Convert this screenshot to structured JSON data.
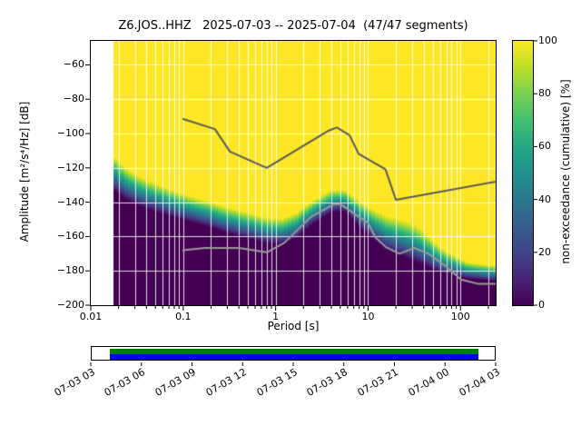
{
  "title": "Z6.JOS..HHZ   2025-07-03 -- 2025-07-04  (47/47 segments)",
  "chart_data": {
    "type": "heatmap",
    "title": "Z6.JOS..HHZ   2025-07-03 -- 2025-07-04  (47/47 segments)",
    "xlabel": "Period [s]",
    "ylabel": "Amplitude [m²/s⁴/Hz] [dB]",
    "colorbar_label": "non-exceedance (cumulative) [%]",
    "x_scale": "log",
    "xlim": [
      0.01,
      240
    ],
    "ylim": [
      -200,
      -46
    ],
    "grid": true,
    "grid_color": "#ffffff",
    "x_ticks": [
      {
        "value": 0.01,
        "label": "0.01"
      },
      {
        "value": 0.1,
        "label": "0.1"
      },
      {
        "value": 1,
        "label": "1"
      },
      {
        "value": 10,
        "label": "10"
      },
      {
        "value": 100,
        "label": "100"
      }
    ],
    "y_ticks": [
      {
        "value": -60,
        "label": "−60"
      },
      {
        "value": -80,
        "label": "−80"
      },
      {
        "value": -100,
        "label": "−100"
      },
      {
        "value": -120,
        "label": "−120"
      },
      {
        "value": -140,
        "label": "−140"
      },
      {
        "value": -160,
        "label": "−160"
      },
      {
        "value": -180,
        "label": "−180"
      },
      {
        "value": -200,
        "label": "−200"
      }
    ],
    "grid_y_values": [
      -60,
      -80,
      -100,
      -120,
      -140,
      -160,
      -180
    ],
    "colorbar_ticks": [
      {
        "value": 0,
        "label": "0"
      },
      {
        "value": 20,
        "label": "20"
      },
      {
        "value": 40,
        "label": "40"
      },
      {
        "value": 60,
        "label": "60"
      },
      {
        "value": 80,
        "label": "80"
      },
      {
        "value": 100,
        "label": "100"
      }
    ],
    "colormap": {
      "name": "viridis",
      "anchors": [
        "#440154",
        "#482475",
        "#414487",
        "#355f8d",
        "#2a788e",
        "#21918c",
        "#22a884",
        "#44bf70",
        "#7ad151",
        "#bddf26",
        "#fde725"
      ]
    },
    "data_period_range": [
      0.0178,
      240
    ],
    "period_step_octaves": 0.125,
    "cumulative_band": {
      "description": "Per period: PSD level at 0% non-exceedance (below = dark) and at 100% (above = yellow), dB",
      "points": [
        [
          0.0178,
          -133,
          -113
        ],
        [
          0.025,
          -139,
          -121
        ],
        [
          0.04,
          -144,
          -127
        ],
        [
          0.07,
          -148,
          -132
        ],
        [
          0.11,
          -151,
          -136
        ],
        [
          0.18,
          -154,
          -139
        ],
        [
          0.3,
          -158,
          -143
        ],
        [
          0.5,
          -161,
          -146
        ],
        [
          0.8,
          -164,
          -149
        ],
        [
          1.2,
          -164.5,
          -149.5
        ],
        [
          1.7,
          -161,
          -146
        ],
        [
          2.5,
          -153,
          -139
        ],
        [
          4.0,
          -146,
          -133
        ],
        [
          5.5,
          -145,
          -132.5
        ],
        [
          7.0,
          -151,
          -137
        ],
        [
          9.0,
          -157,
          -141
        ],
        [
          12,
          -163,
          -145
        ],
        [
          16,
          -168,
          -148
        ],
        [
          22,
          -171,
          -150
        ],
        [
          30,
          -174,
          -152
        ],
        [
          42,
          -177,
          -158
        ],
        [
          60,
          -181,
          -166
        ],
        [
          85,
          -183,
          -171
        ],
        [
          120,
          -184.5,
          -175
        ],
        [
          240,
          -186,
          -177
        ]
      ]
    },
    "noise_models": {
      "nhnm": {
        "name": "Peterson high noise model",
        "color": "#5a5a5a",
        "points": [
          [
            0.1,
            -91.5
          ],
          [
            0.22,
            -97.4
          ],
          [
            0.32,
            -110.5
          ],
          [
            0.8,
            -120.0
          ],
          [
            3.8,
            -98.1
          ],
          [
            4.6,
            -96.5
          ],
          [
            6.3,
            -101.0
          ],
          [
            7.9,
            -111.8
          ],
          [
            15.4,
            -120.8
          ],
          [
            20.0,
            -138.6
          ],
          [
            354.8,
            -126.4
          ]
        ]
      },
      "nlnm": {
        "name": "Peterson low noise model",
        "color": "#9a9a9a",
        "points": [
          [
            0.1,
            -168.0
          ],
          [
            0.17,
            -166.7
          ],
          [
            0.4,
            -166.7
          ],
          [
            0.8,
            -169.2
          ],
          [
            1.24,
            -163.7
          ],
          [
            2.4,
            -148.6
          ],
          [
            4.3,
            -141.1
          ],
          [
            5.0,
            -141.1
          ],
          [
            6.0,
            -144.0
          ],
          [
            10.0,
            -152.1
          ],
          [
            12.0,
            -160.5
          ],
          [
            15.6,
            -166.2
          ],
          [
            21.9,
            -170.0
          ],
          [
            31.6,
            -166.6
          ],
          [
            45.0,
            -170.0
          ],
          [
            70.0,
            -177.5
          ],
          [
            101.0,
            -185.0
          ],
          [
            154.0,
            -187.5
          ],
          [
            328.0,
            -187.5
          ]
        ]
      }
    },
    "timeline": {
      "tick_labels": [
        "07-03 03",
        "07-03 06",
        "07-03 09",
        "07-03 12",
        "07-03 15",
        "07-03 18",
        "07-03 21",
        "07-04 00",
        "07-04 03"
      ],
      "bar": {
        "start_frac": 0.045,
        "end_frac": 0.955,
        "used_color": "#008000",
        "data_color": "#0000ee",
        "border_color": "#000000",
        "background": "#ffffff"
      }
    }
  }
}
